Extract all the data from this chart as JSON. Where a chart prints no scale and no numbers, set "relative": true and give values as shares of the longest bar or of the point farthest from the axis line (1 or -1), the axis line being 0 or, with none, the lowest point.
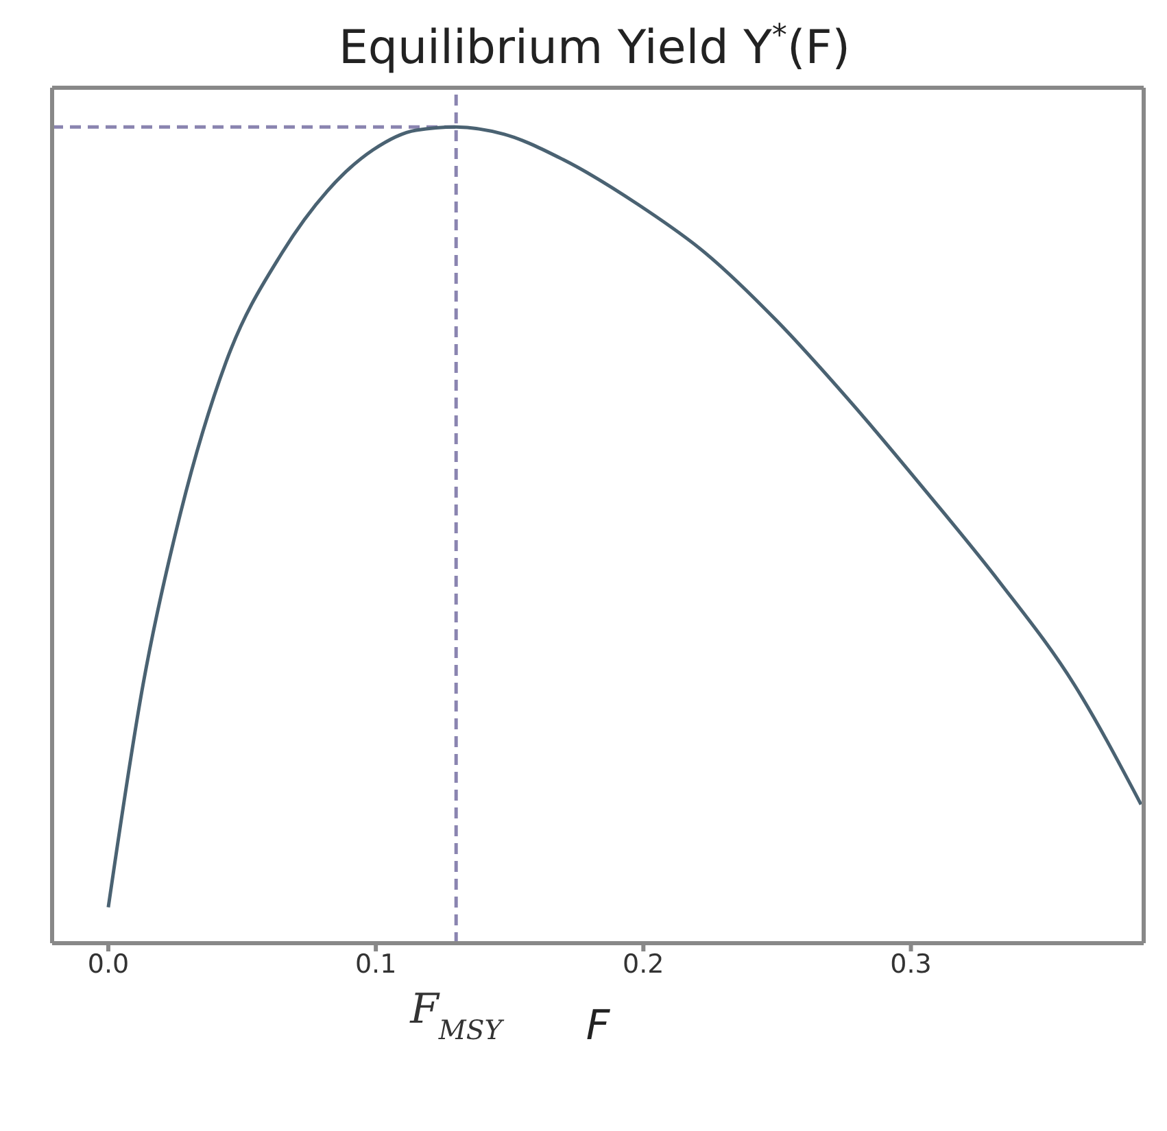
{
  "chart_data": {
    "type": "line",
    "title": "Equilibrium Yield  Y$^{*}$(F)",
    "xlabel": "F",
    "relative": true,
    "x": [
      0,
      0.013,
      0.027,
      0.044,
      0.065,
      0.082,
      0.099,
      0.115,
      0.13,
      0.148,
      0.17,
      0.198,
      0.223,
      0.25,
      0.278,
      0.306,
      0.333,
      0.361,
      0.386
    ],
    "series": [
      {
        "color": "#4a6272",
        "values": [
          0.044,
          0.317,
          0.527,
          0.712,
          0.846,
          0.922,
          0.972,
          0.996,
          1,
          0.991,
          0.96,
          0.905,
          0.846,
          0.762,
          0.661,
          0.552,
          0.443,
          0.317,
          0.17
        ]
      }
    ],
    "xlim": [
      -0.021,
      0.387
    ],
    "xticks": [
      {
        "value": 0,
        "label": "0.0"
      },
      0.1,
      0.2,
      0.3
    ],
    "ref_lines": [
      {
        "axis": "x",
        "value": 0.13,
        "label": "F$_{MSY}$",
        "color": "#8a84b0",
        "line_style": "dashed"
      },
      {
        "axis": "y",
        "value": 1,
        "label": null,
        "color": "#8a84b0",
        "line_style": "dashed"
      }
    ],
    "grid": false,
    "legend": false,
    "marker": "none",
    "line_style": "solid"
  }
}
